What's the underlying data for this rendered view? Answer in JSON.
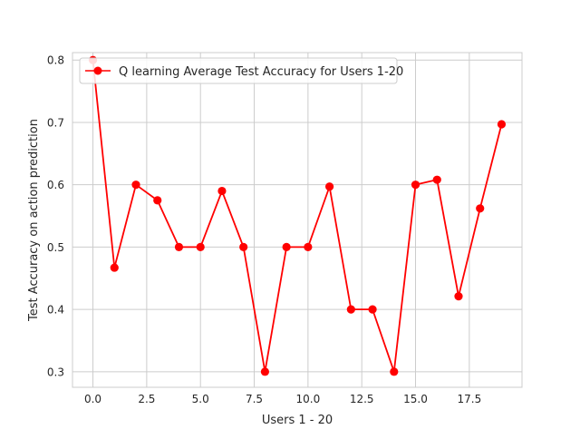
{
  "chart_data": {
    "type": "line",
    "title": "",
    "xlabel": "Users 1 - 20",
    "ylabel": "Test Accuracy on action prediction",
    "xlim": [
      -0.95,
      19.95
    ],
    "ylim": [
      0.275,
      0.812
    ],
    "grid": true,
    "legend_position": "top-left",
    "x_ticks": [
      0,
      2.5,
      5,
      7.5,
      10,
      12.5,
      15,
      17.5
    ],
    "x_tick_labels": [
      "0.0",
      "2.5",
      "5.0",
      "7.5",
      "10.0",
      "12.5",
      "15.0",
      "17.5"
    ],
    "y_ticks": [
      0.3,
      0.4,
      0.5,
      0.6,
      0.7,
      0.8
    ],
    "y_tick_labels": [
      "0.3",
      "0.4",
      "0.5",
      "0.6",
      "0.7",
      "0.8"
    ],
    "series": [
      {
        "name": "Q learning Average Test Accuracy for Users 1-20",
        "color": "#ff0000",
        "x": [
          0,
          1,
          2,
          3,
          4,
          5,
          6,
          7,
          8,
          9,
          10,
          11,
          12,
          13,
          14,
          15,
          16,
          17,
          18,
          19
        ],
        "values": [
          0.8,
          0.467,
          0.6,
          0.575,
          0.5,
          0.5,
          0.59,
          0.5,
          0.3,
          0.5,
          0.5,
          0.597,
          0.4,
          0.4,
          0.3,
          0.6,
          0.608,
          0.421,
          0.562,
          0.697
        ]
      }
    ]
  }
}
